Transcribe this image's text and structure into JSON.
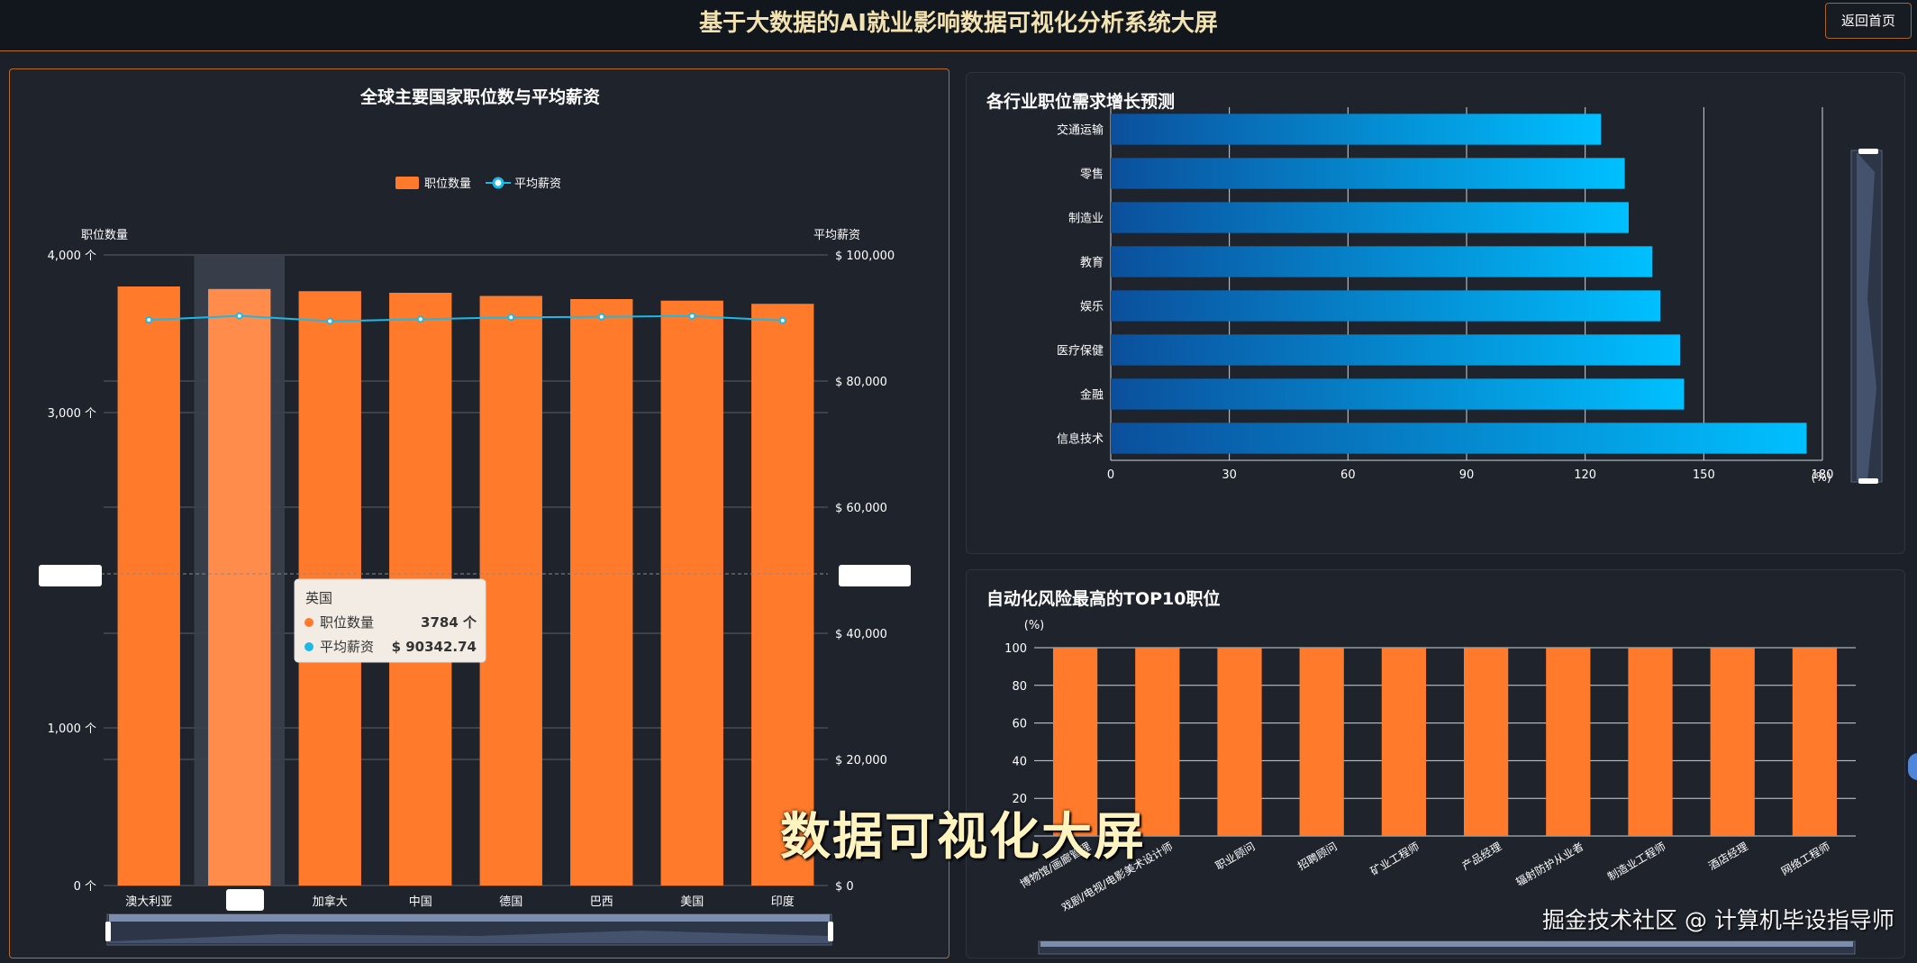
{
  "header": {
    "title": "基于大数据的AI就业影响数据可视化分析系统大屏",
    "home_button": "返回首页"
  },
  "colors": {
    "bar_orange": "#ff7a2b",
    "line_cyan": "#1cb9e6",
    "bar_blue_start": "#0b4f9c",
    "bar_blue_end": "#00c0ff"
  },
  "chart_data": [
    {
      "type": "bar",
      "title": "全球主要国家职位数与平均薪资",
      "legend": {
        "placement": "top-center",
        "items": [
          "职位数量",
          "平均薪资"
        ]
      },
      "ylabel": "职位数量",
      "y2label": "平均薪资",
      "ylim": [
        0,
        4000
      ],
      "y2lim": [
        0,
        100000
      ],
      "yticks": [
        {
          "v": 0,
          "label": "0 个"
        },
        {
          "v": 1000,
          "label": "1,000 个"
        },
        {
          "v": 3000,
          "label": "3,000 个"
        },
        {
          "v": 4000,
          "label": "4,000 个"
        }
      ],
      "y2ticks": [
        {
          "v": 0,
          "label": "$ 0"
        },
        {
          "v": 20000,
          "label": "$ 20,000"
        },
        {
          "v": 40000,
          "label": "$ 40,000"
        },
        {
          "v": 60000,
          "label": "$ 60,000"
        },
        {
          "v": 80000,
          "label": "$ 80,000"
        },
        {
          "v": 100000,
          "label": "$ 100,000"
        }
      ],
      "categories": [
        "澳大利亚",
        "英国",
        "加拿大",
        "中国",
        "德国",
        "巴西",
        "美国",
        "印度"
      ],
      "series": [
        {
          "name": "职位数量",
          "type": "bar",
          "values": [
            3800,
            3784,
            3770,
            3760,
            3740,
            3720,
            3710,
            3690
          ]
        },
        {
          "name": "平均薪资",
          "type": "line",
          "axis": "right",
          "values": [
            89700,
            90342.74,
            89500,
            89800,
            90100,
            90200,
            90300,
            89600
          ]
        }
      ],
      "highlight_index": 1,
      "tooltip": {
        "title": "英国",
        "rows": [
          {
            "name": "职位数量",
            "value": "3784 个"
          },
          {
            "name": "平均薪资",
            "value": "$ 90342.74"
          }
        ]
      },
      "grid": true
    },
    {
      "type": "bar",
      "orientation": "horizontal",
      "title": "各行业职位需求增长预测",
      "categories": [
        "信息技术",
        "金融",
        "医疗保健",
        "娱乐",
        "教育",
        "制造业",
        "零售",
        "交通运输"
      ],
      "values": [
        176,
        145,
        144,
        139,
        137,
        131,
        130,
        124
      ],
      "xlim": [
        0,
        180
      ],
      "xticks": [
        0,
        30,
        60,
        90,
        120,
        150,
        180
      ],
      "xunit": "(%)",
      "grid": true
    },
    {
      "type": "bar",
      "title": "自动化风险最高的TOP10职位",
      "ylabel": "(%)",
      "ylim": [
        0,
        100
      ],
      "yticks": [
        20,
        40,
        60,
        80,
        100
      ],
      "categories": [
        "博物馆/画廊管理",
        "戏剧/电视/电影美术设计师",
        "职业顾问",
        "招聘顾问",
        "矿业工程师",
        "产品经理",
        "辐射防护从业者",
        "制造业工程师",
        "酒店经理",
        "网络工程师"
      ],
      "values": [
        100,
        100,
        100,
        100,
        100,
        100,
        100,
        100,
        100,
        100
      ],
      "grid": true
    }
  ],
  "overlay": {
    "caption": "数据可视化大屏",
    "watermark": "掘金技术社区 @ 计算机毕设指导师"
  }
}
